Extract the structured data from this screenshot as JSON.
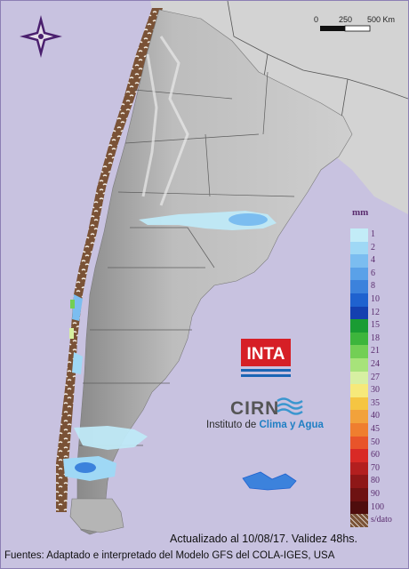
{
  "scale": {
    "ticks": [
      "0",
      "250",
      "500 Km"
    ]
  },
  "legend": {
    "unit": "mm",
    "items": [
      {
        "label": "1",
        "color": "#c2ecf7"
      },
      {
        "label": "2",
        "color": "#9fd8f5"
      },
      {
        "label": "4",
        "color": "#7bbdf0"
      },
      {
        "label": "6",
        "color": "#5aa1e8"
      },
      {
        "label": "8",
        "color": "#3c82dc"
      },
      {
        "label": "10",
        "color": "#1f62cf"
      },
      {
        "label": "12",
        "color": "#1440b0"
      },
      {
        "label": "15",
        "color": "#1a9c33"
      },
      {
        "label": "18",
        "color": "#3db53c"
      },
      {
        "label": "21",
        "color": "#73cf55"
      },
      {
        "label": "24",
        "color": "#a7e37a"
      },
      {
        "label": "27",
        "color": "#d7f0a2"
      },
      {
        "label": "30",
        "color": "#f6e97a"
      },
      {
        "label": "35",
        "color": "#f5c542"
      },
      {
        "label": "40",
        "color": "#f2a23b"
      },
      {
        "label": "45",
        "color": "#ef7e2f"
      },
      {
        "label": "50",
        "color": "#e8542a"
      },
      {
        "label": "60",
        "color": "#d92a26"
      },
      {
        "label": "70",
        "color": "#b31f1f"
      },
      {
        "label": "80",
        "color": "#8e1717"
      },
      {
        "label": "90",
        "color": "#6e1212"
      },
      {
        "label": "100",
        "color": "#4f0d0d"
      },
      {
        "label": "s/dato",
        "color": "#7a5236"
      }
    ]
  },
  "logo": {
    "inta": "INTA",
    "cirn": "CIRN",
    "institute_prefix": "Instituto de ",
    "institute_highlight": "Clima y Agua"
  },
  "footer": {
    "updated": "Actualizado al 10/08/17. Validez 48hs.",
    "sources": "Fuentes: Adaptado e interpretado del Modelo GFS del COLA-IGES, USA"
  }
}
